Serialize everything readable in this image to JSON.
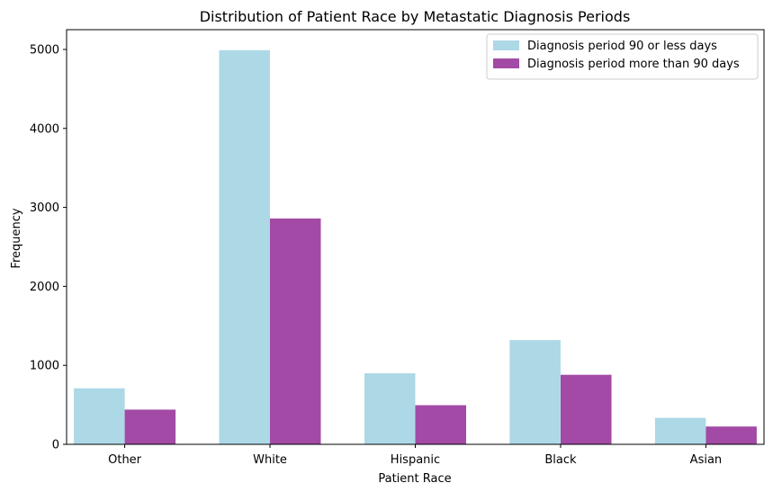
{
  "chart_data": {
    "type": "bar",
    "title": "Distribution of Patient Race by Metastatic Diagnosis Periods",
    "xlabel": "Patient Race",
    "ylabel": "Frequency",
    "categories": [
      "Other",
      "White",
      "Hispanic",
      "Black",
      "Asian"
    ],
    "series": [
      {
        "name": "Diagnosis period 90 or less days",
        "color": "#add8e6",
        "values": [
          710,
          4990,
          900,
          1320,
          335
        ]
      },
      {
        "name": "Diagnosis period more than 90 days",
        "color": "#a24aa6",
        "values": [
          440,
          2860,
          495,
          880,
          225
        ]
      }
    ],
    "ylim": [
      0,
      5250
    ],
    "yticks": [
      0,
      1000,
      2000,
      3000,
      4000,
      5000
    ],
    "grid": false,
    "legend_position": "top-right"
  }
}
